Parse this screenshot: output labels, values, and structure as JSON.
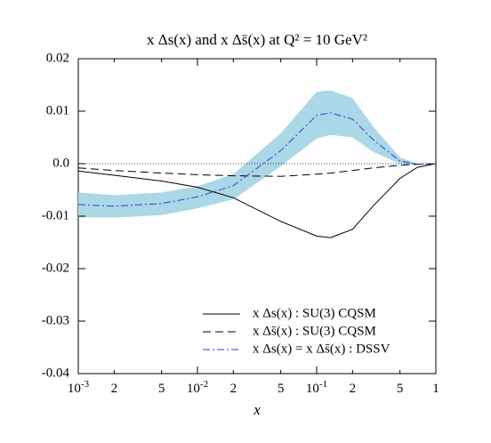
{
  "chart_data": {
    "type": "line",
    "title": "x Δs(x) and x Δs̄(x) at Q² = 10 GeV²",
    "x_label": "x",
    "xscale": "log",
    "x": [
      0.001,
      0.002,
      0.005,
      0.01,
      0.02,
      0.05,
      0.1,
      0.13,
      0.2,
      0.3,
      0.5,
      0.7,
      1
    ],
    "series": [
      {
        "name": "x Δs(x) : SU(3) CQSM",
        "color": "#000000",
        "dash": "solid",
        "values": [
          -0.0014,
          -0.0022,
          -0.0033,
          -0.0045,
          -0.0065,
          -0.011,
          -0.0138,
          -0.0141,
          -0.0125,
          -0.008,
          -0.0028,
          -0.0007,
          0
        ]
      },
      {
        "name": "x Δs̄(x) : SU(3) CQSM",
        "color": "#000000",
        "dash": "dashed",
        "values": [
          -0.0008,
          -0.0013,
          -0.0018,
          -0.0021,
          -0.0023,
          -0.0024,
          -0.002,
          -0.0018,
          -0.0013,
          -0.0008,
          -0.0003,
          -0.0001,
          0
        ]
      },
      {
        "name": "x Δs(x) = x Δs̄(x) : DSSV",
        "color": "#3a3ad8",
        "dash": "dashdot",
        "values": [
          -0.0078,
          -0.0081,
          -0.0076,
          -0.0063,
          -0.0042,
          0.0025,
          0.0092,
          0.0097,
          0.0085,
          0.0045,
          0.0005,
          -0.0001,
          0
        ]
      }
    ],
    "band": {
      "color": "#aad8e6",
      "upper": [
        -0.0055,
        -0.006,
        -0.0055,
        -0.0043,
        -0.002,
        0.0058,
        0.0137,
        0.014,
        0.0125,
        0.007,
        0.0012,
        0,
        0
      ],
      "lower": [
        -0.0102,
        -0.0103,
        -0.0098,
        -0.0085,
        -0.0068,
        -0.0005,
        0.0048,
        0.0055,
        0.005,
        0.0022,
        0,
        -0.0003,
        0
      ]
    },
    "xlim": [
      0.001,
      1
    ],
    "xticks": [
      {
        "value": 0.001,
        "label": "10",
        "exponent": "-3"
      },
      {
        "value": 0.002,
        "label": "2"
      },
      {
        "value": 0.005,
        "label": "5"
      },
      {
        "value": 0.01,
        "label": "10",
        "exponent": "-2"
      },
      {
        "value": 0.02,
        "label": "2"
      },
      {
        "value": 0.05,
        "label": "5"
      },
      {
        "value": 0.1,
        "label": "10",
        "exponent": "-1"
      },
      {
        "value": 0.2,
        "label": "2"
      },
      {
        "value": 0.5,
        "label": "5"
      },
      1
    ],
    "ylim": [
      -0.04,
      0.02
    ],
    "yticks": [
      0.02,
      0.01,
      {
        "value": 0,
        "label": "0.0"
      },
      -0.01,
      -0.02,
      -0.03,
      -0.04
    ],
    "zero_line": true,
    "grid": false,
    "legend": "lower right"
  }
}
